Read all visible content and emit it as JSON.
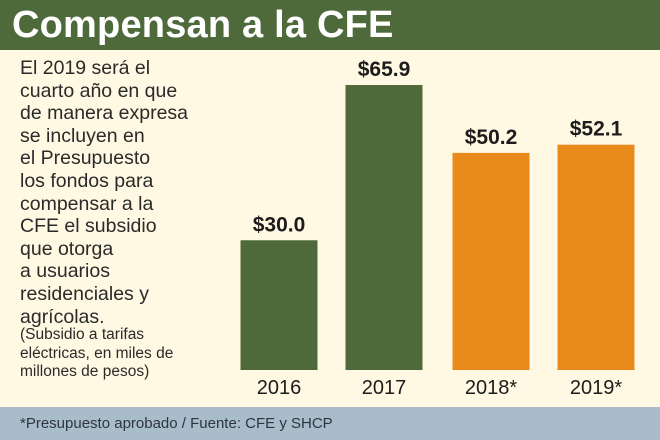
{
  "header": {
    "title": "Compensan a la CFE"
  },
  "description": {
    "lines": [
      "El 2019 será el",
      "cuarto año en que",
      "de manera expresa",
      "se incluyen en",
      "el Presupuesto",
      "los fondos para",
      "compensar a la",
      "CFE el subsidio",
      "que otorga",
      "a usuarios",
      "residenciales y",
      "agrícolas."
    ]
  },
  "note": {
    "lines": [
      "(Subsidio a tarifas",
      "eléctricas, en miles de",
      "millones de pesos)"
    ]
  },
  "footer": {
    "text": "*Presupuesto aprobado / Fuente: CFE y SHCP"
  },
  "chart_data": {
    "type": "bar",
    "categories": [
      "2016",
      "2017",
      "2018*",
      "2019*"
    ],
    "values": [
      30.0,
      65.9,
      50.2,
      52.1
    ],
    "value_labels": [
      "$30.0",
      "$65.9",
      "$50.2",
      "$52.1"
    ],
    "colors": [
      "#4f6a3a",
      "#4f6a3a",
      "#e88a1c",
      "#e88a1c"
    ],
    "ylim": [
      0,
      65.9
    ],
    "grid": false,
    "legend": "none",
    "title": "",
    "xlabel": "",
    "ylabel": ""
  }
}
